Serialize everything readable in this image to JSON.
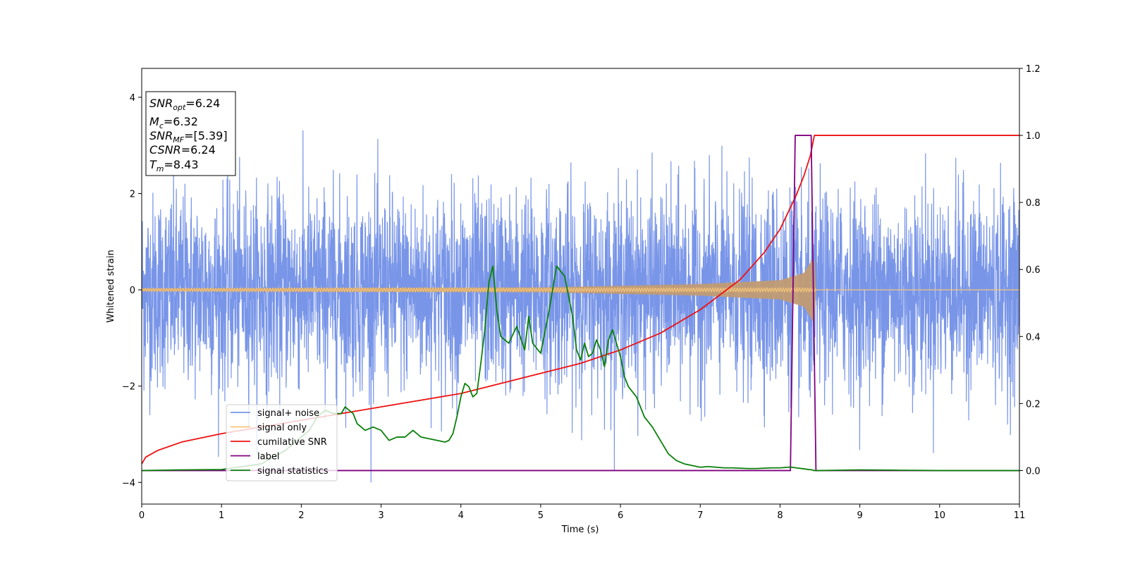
{
  "chart_data": {
    "type": "line",
    "xlabel": "Time (s)",
    "ylabel": "Whitened strain",
    "xlim": [
      0,
      11
    ],
    "ylim_left": [
      -4.45,
      4.6
    ],
    "ylim_right": [
      -0.1,
      1.2
    ],
    "x_ticks": [
      "0",
      "1",
      "2",
      "3",
      "4",
      "5",
      "6",
      "7",
      "8",
      "9",
      "10",
      "11"
    ],
    "y_ticks_left": [
      "−4",
      "−2",
      "0",
      "2",
      "4"
    ],
    "y_ticks_left_values": [
      -4,
      -2,
      0,
      2,
      4
    ],
    "y_ticks_right": [
      "0.0",
      "0.2",
      "0.4",
      "0.6",
      "0.8",
      "1.0",
      "1.2"
    ],
    "y_ticks_right_values": [
      0.0,
      0.2,
      0.4,
      0.6,
      0.8,
      1.0,
      1.2
    ],
    "legend_position": "lower-left",
    "grid": false,
    "colors": {
      "signal_noise": "#7895e8",
      "signal_only": "#f6c57a",
      "signal_fill": "#c19b73",
      "cumulative_snr": "#ee1111",
      "label": "#800080",
      "signal_statistics": "#0a800a"
    },
    "annotation": {
      "snr_opt": {
        "name": "SNR",
        "sub": "opt",
        "value": "=6.24"
      },
      "mc": {
        "name": "M",
        "sub": "c",
        "value": "=6.32"
      },
      "snr_mf": {
        "name": "SNR",
        "sub": "MF",
        "value": "=[5.39]"
      },
      "csnr": {
        "name": "CSNR",
        "value": "=6.24"
      },
      "tm": {
        "name": "T",
        "sub": "m",
        "value": "=8.43"
      }
    },
    "series": [
      {
        "name": "signal+ noise",
        "axis": "left",
        "description_noise_std": 1.0,
        "x_range": [
          0,
          11
        ]
      },
      {
        "name": "signal only",
        "axis": "left",
        "amplitude_envelope": {
          "x": [
            0,
            5,
            7,
            8,
            8.3,
            8.43,
            8.45,
            11
          ],
          "y": [
            0.03,
            0.05,
            0.12,
            0.2,
            0.35,
            0.7,
            0.0,
            0.0
          ]
        }
      },
      {
        "name": "cumilative SNR",
        "axis": "right",
        "x": [
          0,
          0.05,
          0.2,
          0.5,
          1,
          1.5,
          2,
          2.5,
          3,
          3.5,
          4,
          4.5,
          5,
          5.5,
          6,
          6.5,
          7,
          7.5,
          7.8,
          8.0,
          8.2,
          8.3,
          8.38,
          8.43,
          11
        ],
        "y": [
          0.02,
          0.04,
          0.06,
          0.085,
          0.11,
          0.13,
          0.15,
          0.17,
          0.19,
          0.21,
          0.23,
          0.26,
          0.29,
          0.32,
          0.36,
          0.41,
          0.48,
          0.57,
          0.65,
          0.72,
          0.82,
          0.88,
          0.94,
          1.0,
          1.0
        ]
      },
      {
        "name": "label",
        "axis": "right",
        "x": [
          0,
          8.13,
          8.19,
          8.39,
          8.45,
          11
        ],
        "y": [
          0.0,
          0.0,
          1.0,
          1.0,
          0.0,
          0.0
        ]
      },
      {
        "name": "signal statistics",
        "axis": "right",
        "x": [
          0,
          0.5,
          1.0,
          1.5,
          1.8,
          2.0,
          2.1,
          2.2,
          2.3,
          2.4,
          2.5,
          2.55,
          2.6,
          2.65,
          2.7,
          2.8,
          2.9,
          3.0,
          3.1,
          3.2,
          3.3,
          3.4,
          3.5,
          3.6,
          3.7,
          3.8,
          3.85,
          3.9,
          3.95,
          4.0,
          4.05,
          4.1,
          4.15,
          4.2,
          4.25,
          4.3,
          4.35,
          4.4,
          4.45,
          4.5,
          4.6,
          4.7,
          4.8,
          4.85,
          4.9,
          5.0,
          5.05,
          5.1,
          5.15,
          5.2,
          5.3,
          5.4,
          5.45,
          5.5,
          5.55,
          5.6,
          5.65,
          5.7,
          5.75,
          5.8,
          5.85,
          5.9,
          6.0,
          6.05,
          6.1,
          6.2,
          6.25,
          6.3,
          6.4,
          6.5,
          6.6,
          6.7,
          6.8,
          6.9,
          7.0,
          7.1,
          7.2,
          7.3,
          7.4,
          7.5,
          7.6,
          7.7,
          7.8,
          7.9,
          8.0,
          8.1,
          8.15,
          8.2,
          8.3,
          8.4,
          8.43,
          8.5,
          9.0,
          9.5,
          10,
          11
        ],
        "y": [
          0.0,
          0.002,
          0.003,
          0.02,
          0.06,
          0.1,
          0.12,
          0.16,
          0.18,
          0.17,
          0.17,
          0.19,
          0.18,
          0.17,
          0.14,
          0.12,
          0.13,
          0.12,
          0.09,
          0.1,
          0.1,
          0.12,
          0.1,
          0.095,
          0.09,
          0.085,
          0.09,
          0.11,
          0.16,
          0.22,
          0.26,
          0.25,
          0.22,
          0.23,
          0.32,
          0.42,
          0.56,
          0.61,
          0.48,
          0.4,
          0.38,
          0.43,
          0.36,
          0.46,
          0.38,
          0.35,
          0.41,
          0.47,
          0.54,
          0.61,
          0.58,
          0.46,
          0.36,
          0.33,
          0.38,
          0.34,
          0.35,
          0.39,
          0.36,
          0.31,
          0.39,
          0.42,
          0.34,
          0.28,
          0.25,
          0.22,
          0.19,
          0.16,
          0.13,
          0.09,
          0.05,
          0.03,
          0.02,
          0.015,
          0.01,
          0.012,
          0.01,
          0.008,
          0.008,
          0.007,
          0.006,
          0.006,
          0.007,
          0.008,
          0.008,
          0.01,
          0.01,
          0.008,
          0.005,
          0.002,
          0.0,
          0.0,
          0.002,
          0.001,
          0.0,
          0.0
        ]
      }
    ]
  }
}
